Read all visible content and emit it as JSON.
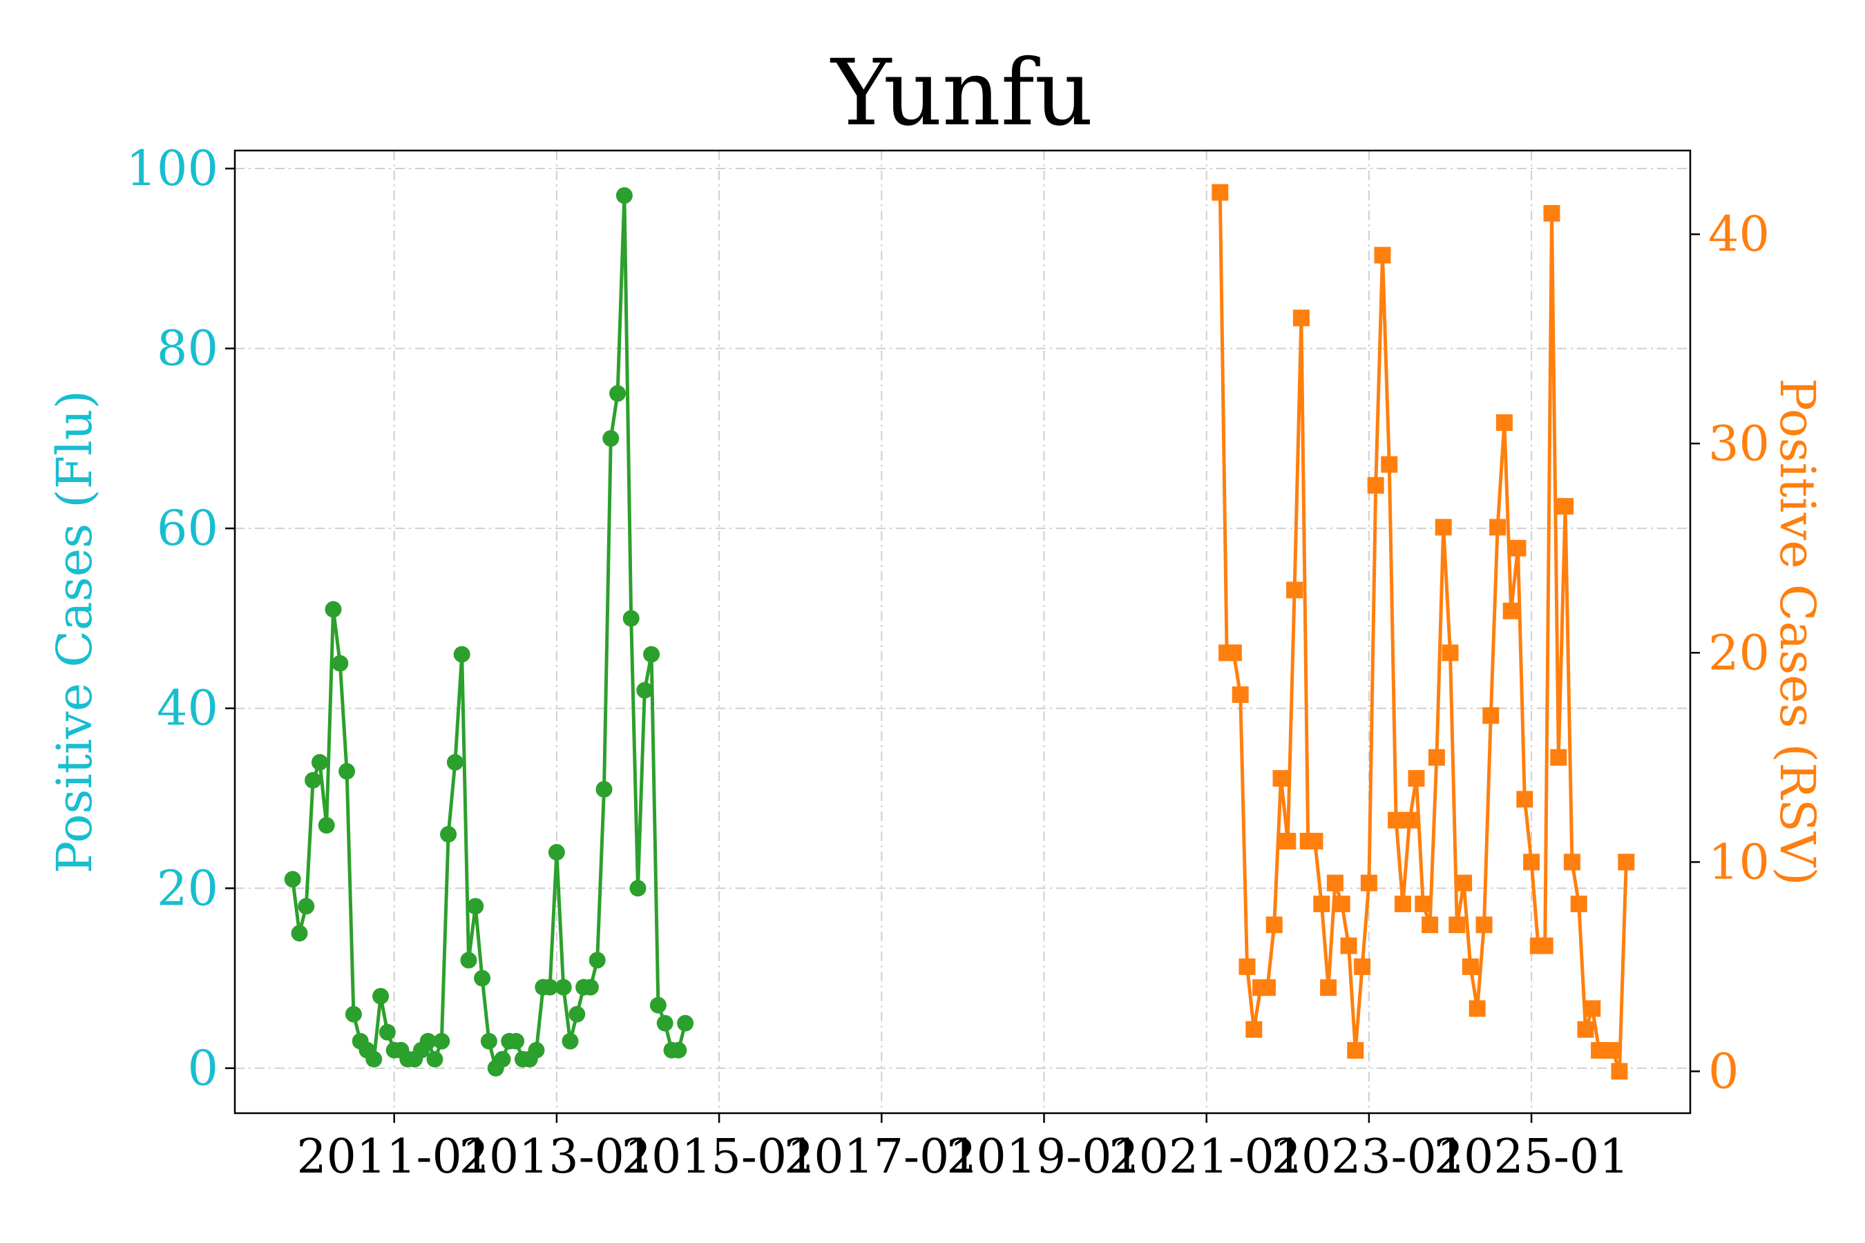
{
  "colors": {
    "flu": "#2ca02c",
    "rsv": "#ff7f0e",
    "flu_axis": "#17becf",
    "rsv_axis": "#ff7f0e"
  },
  "chart_data": {
    "type": "line",
    "title": "Yunfu",
    "xlabel": "",
    "ylabel_left": "Positive Cases (Flu)",
    "ylabel_right": "Positive Cases (RSV)",
    "x_ticks": [
      "2011-01",
      "2013-01",
      "2015-01",
      "2017-01",
      "2019-01",
      "2021-01",
      "2023-01",
      "2025-01"
    ],
    "y_left_ticks": [
      0,
      20,
      40,
      60,
      80,
      100
    ],
    "y_right_ticks": [
      0,
      10,
      20,
      30,
      40
    ],
    "xlim": [
      "2009-01-15",
      "2026-12-15"
    ],
    "ylim_left": [
      -5,
      102
    ],
    "ylim_right": [
      -2,
      44
    ],
    "grid": true,
    "series": [
      {
        "name": "Flu",
        "axis": "left",
        "marker": "circle",
        "color": "#2ca02c",
        "points": [
          [
            "2009-10",
            21
          ],
          [
            "2009-11",
            15
          ],
          [
            "2009-12",
            18
          ],
          [
            "2010-01",
            32
          ],
          [
            "2010-02",
            34
          ],
          [
            "2010-03",
            27
          ],
          [
            "2010-04",
            51
          ],
          [
            "2010-05",
            45
          ],
          [
            "2010-06",
            33
          ],
          [
            "2010-07",
            6
          ],
          [
            "2010-08",
            3
          ],
          [
            "2010-09",
            2
          ],
          [
            "2010-10",
            1
          ],
          [
            "2010-11",
            8
          ],
          [
            "2010-12",
            4
          ],
          [
            "2011-01",
            2
          ],
          [
            "2011-02",
            2
          ],
          [
            "2011-03",
            1
          ],
          [
            "2011-04",
            1
          ],
          [
            "2011-05",
            2
          ],
          [
            "2011-06",
            3
          ],
          [
            "2011-07",
            1
          ],
          [
            "2011-08",
            3
          ],
          [
            "2011-09",
            26
          ],
          [
            "2011-10",
            34
          ],
          [
            "2011-11",
            46
          ],
          [
            "2011-12",
            12
          ],
          [
            "2012-01",
            18
          ],
          [
            "2012-02",
            10
          ],
          [
            "2012-03",
            3
          ],
          [
            "2012-04",
            0
          ],
          [
            "2012-05",
            1
          ],
          [
            "2012-06",
            3
          ],
          [
            "2012-07",
            3
          ],
          [
            "2012-08",
            1
          ],
          [
            "2012-09",
            1
          ],
          [
            "2012-10",
            2
          ],
          [
            "2012-11",
            9
          ],
          [
            "2012-12",
            9
          ],
          [
            "2013-01",
            24
          ],
          [
            "2013-02",
            9
          ],
          [
            "2013-03",
            3
          ],
          [
            "2013-04",
            6
          ],
          [
            "2013-05",
            9
          ],
          [
            "2013-06",
            9
          ],
          [
            "2013-07",
            12
          ],
          [
            "2013-08",
            31
          ],
          [
            "2013-09",
            70
          ],
          [
            "2013-10",
            75
          ],
          [
            "2013-11",
            97
          ],
          [
            "2013-12",
            50
          ],
          [
            "2014-01",
            20
          ],
          [
            "2014-02",
            42
          ],
          [
            "2014-03",
            46
          ],
          [
            "2014-04",
            7
          ],
          [
            "2014-05",
            5
          ],
          [
            "2014-06",
            2
          ],
          [
            "2014-07",
            2
          ],
          [
            "2014-08",
            5
          ]
        ]
      },
      {
        "name": "RSV",
        "axis": "right",
        "marker": "square",
        "color": "#ff7f0e",
        "points": [
          [
            "2021-03",
            42
          ],
          [
            "2021-04",
            20
          ],
          [
            "2021-05",
            20
          ],
          [
            "2021-06",
            18
          ],
          [
            "2021-07",
            5
          ],
          [
            "2021-08",
            2
          ],
          [
            "2021-09",
            4
          ],
          [
            "2021-10",
            4
          ],
          [
            "2021-11",
            7
          ],
          [
            "2021-12",
            14
          ],
          [
            "2022-01",
            11
          ],
          [
            "2022-02",
            23
          ],
          [
            "2022-03",
            36
          ],
          [
            "2022-04",
            11
          ],
          [
            "2022-05",
            11
          ],
          [
            "2022-06",
            8
          ],
          [
            "2022-07",
            4
          ],
          [
            "2022-08",
            9
          ],
          [
            "2022-09",
            8
          ],
          [
            "2022-10",
            6
          ],
          [
            "2022-11",
            1
          ],
          [
            "2022-12",
            5
          ],
          [
            "2023-01",
            9
          ],
          [
            "2023-02",
            28
          ],
          [
            "2023-03",
            39
          ],
          [
            "2023-04",
            29
          ],
          [
            "2023-05",
            12
          ],
          [
            "2023-06",
            8
          ],
          [
            "2023-07",
            12
          ],
          [
            "2023-08",
            14
          ],
          [
            "2023-09",
            8
          ],
          [
            "2023-10",
            7
          ],
          [
            "2023-11",
            15
          ],
          [
            "2023-12",
            26
          ],
          [
            "2024-01",
            20
          ],
          [
            "2024-02",
            7
          ],
          [
            "2024-03",
            9
          ],
          [
            "2024-04",
            5
          ],
          [
            "2024-05",
            3
          ],
          [
            "2024-06",
            7
          ],
          [
            "2024-07",
            17
          ],
          [
            "2024-08",
            26
          ],
          [
            "2024-09",
            31
          ],
          [
            "2024-10",
            22
          ],
          [
            "2024-11",
            25
          ],
          [
            "2024-12",
            13
          ],
          [
            "2025-01",
            10
          ],
          [
            "2025-02",
            6
          ],
          [
            "2025-03",
            6
          ],
          [
            "2025-04",
            41
          ],
          [
            "2025-05",
            15
          ],
          [
            "2025-06",
            27
          ],
          [
            "2025-07",
            10
          ],
          [
            "2025-08",
            8
          ],
          [
            "2025-09",
            2
          ],
          [
            "2025-10",
            3
          ],
          [
            "2025-11",
            1
          ],
          [
            "2025-12",
            1
          ],
          [
            "2026-01",
            1
          ],
          [
            "2026-02",
            0
          ],
          [
            "2026-03",
            10
          ]
        ]
      }
    ]
  }
}
